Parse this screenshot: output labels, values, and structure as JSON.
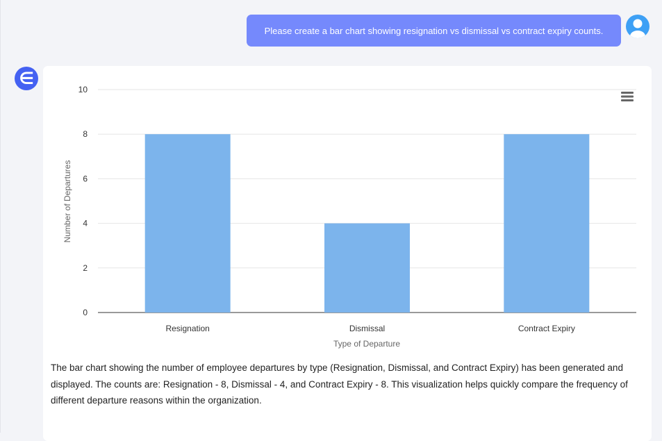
{
  "user_message": "Please create a bar chart showing resignation vs dismissal vs contract expiry counts.",
  "bot_logo": "∈",
  "chart_data": {
    "type": "bar",
    "categories": [
      "Resignation",
      "Dismissal",
      "Contract Expiry"
    ],
    "values": [
      8,
      4,
      8
    ],
    "xlabel": "Type of Departure",
    "ylabel": "Number of Departures",
    "ylim": [
      0,
      10
    ],
    "yticks": [
      0,
      2,
      4,
      6,
      8,
      10
    ],
    "grid": true,
    "color": "#7cb4ec"
  },
  "menu_icon": "hamburger-menu-icon",
  "description": "The bar chart showing the number of employee departures by type (Resignation, Dismissal, and Contract Expiry) has been generated and displayed. The counts are: Resignation - 8, Dismissal - 4, and Contract Expiry - 8. This visualization helps quickly compare the frequency of different departure reasons within the organization."
}
